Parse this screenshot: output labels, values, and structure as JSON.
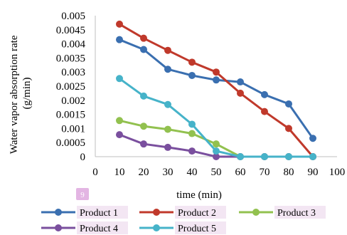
{
  "chart_data": {
    "type": "line",
    "title": "",
    "xlabel": "time (min)",
    "ylabel": "Water vapor absorption rate (g/min)",
    "ylabel_lines": [
      "Water vapor absorption rate",
      "(g/min)"
    ],
    "xlim": [
      0,
      100
    ],
    "ylim": [
      0,
      0.005
    ],
    "x_ticks": [
      0,
      10,
      20,
      30,
      40,
      50,
      60,
      70,
      80,
      90,
      100
    ],
    "x_tick_labels": [
      "0",
      "10",
      "20",
      "30",
      "40",
      "50",
      "60",
      "70",
      "80",
      "90",
      "100"
    ],
    "y_ticks": [
      0,
      0.0005,
      0.001,
      0.0015,
      0.002,
      0.0025,
      0.003,
      0.0035,
      0.004,
      0.0045,
      0.005
    ],
    "y_tick_labels": [
      "0",
      "0.0005",
      "0.001",
      "0.0015",
      "0.002",
      "0.0025",
      "0.003",
      "0.0035",
      "0.004",
      "0.0045",
      "0.005"
    ],
    "grid": false,
    "legend_position": "bottom",
    "badge": "9",
    "series": [
      {
        "name": "Product 1",
        "color": "#3a6fb0",
        "x": [
          10,
          20,
          30,
          40,
          50,
          60,
          70,
          80,
          90
        ],
        "values": [
          0.00415,
          0.0038,
          0.0031,
          0.00288,
          0.00272,
          0.00265,
          0.0022,
          0.00187,
          0.00065
        ]
      },
      {
        "name": "Product 2",
        "color": "#c0392b",
        "x": [
          10,
          20,
          30,
          40,
          50,
          60,
          70,
          80,
          90
        ],
        "values": [
          0.0047,
          0.0042,
          0.00377,
          0.00335,
          0.003,
          0.00225,
          0.0016,
          0.001,
          0
        ]
      },
      {
        "name": "Product 3",
        "color": "#92c14f",
        "x": [
          10,
          20,
          30,
          40,
          50,
          60,
          70,
          80,
          90
        ],
        "values": [
          0.00128,
          0.00108,
          0.00097,
          0.00082,
          0.00045,
          0,
          0,
          0,
          0
        ]
      },
      {
        "name": "Product 4",
        "color": "#7a4f9e",
        "x": [
          10,
          20,
          30,
          40,
          50,
          60,
          70,
          80,
          90
        ],
        "values": [
          0.00078,
          0.00045,
          0.00033,
          0.0002,
          0,
          0,
          0,
          0,
          0
        ]
      },
      {
        "name": "Product 5",
        "color": "#46b3c9",
        "x": [
          10,
          20,
          30,
          40,
          50,
          60,
          70,
          80,
          90
        ],
        "values": [
          0.00277,
          0.00215,
          0.00185,
          0.00115,
          0.0002,
          0,
          0,
          0,
          0
        ]
      }
    ]
  }
}
